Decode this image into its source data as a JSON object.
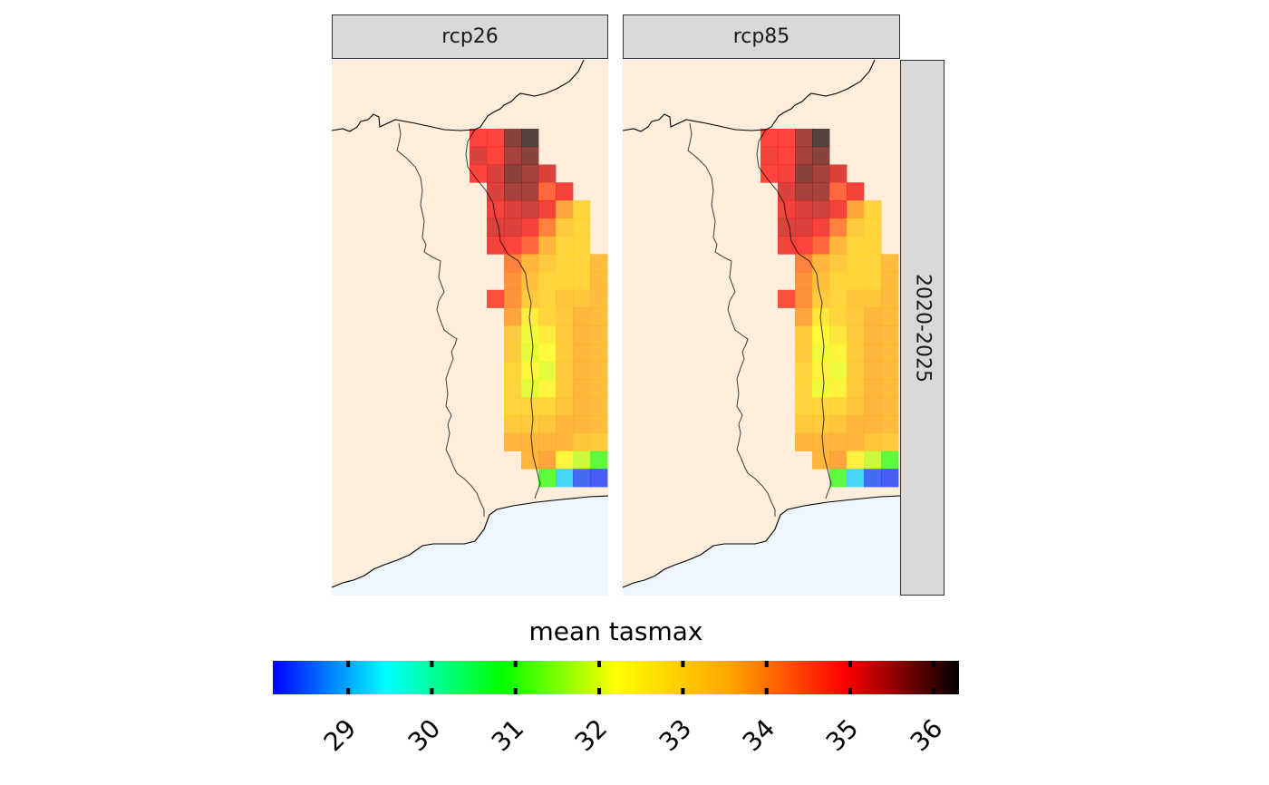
{
  "facets": {
    "columns": [
      "rcp26",
      "rcp85"
    ],
    "row_label": "2020-2025"
  },
  "legend": {
    "title": "mean tasmax",
    "min": 28.1,
    "max": 36.3,
    "ticks": [
      "29",
      "30",
      "31",
      "32",
      "33",
      "34",
      "35",
      "36"
    ],
    "tick_values": [
      29,
      30,
      31,
      32,
      33,
      34,
      35,
      36
    ],
    "colors": [
      "#0000ff",
      "#00ffff",
      "#00ff00",
      "#ffff00",
      "#ffa500",
      "#ff0000",
      "#000000"
    ]
  },
  "colors": {
    "land": "#ffeedb",
    "sea": "#eef6ff",
    "strip_fill": "#d9d9d9",
    "border": "#000000"
  },
  "chart_data": {
    "type": "heatmap",
    "title": "",
    "value_label": "mean tasmax",
    "panels": [
      {
        "name": "rcp26",
        "row": "2020-2025",
        "grid": [
          [
            null,
            null,
            null,
            null,
            34.9,
            34.9,
            35.8,
            36.2,
            null,
            null,
            null,
            null
          ],
          [
            null,
            null,
            null,
            null,
            35.2,
            34.9,
            35.6,
            35.8,
            null,
            null,
            null,
            null
          ],
          [
            null,
            null,
            null,
            null,
            34.9,
            35.2,
            35.8,
            35.6,
            35.2,
            null,
            null,
            null
          ],
          [
            null,
            null,
            null,
            null,
            null,
            35.2,
            35.6,
            35.6,
            34.5,
            35.0,
            null,
            null
          ],
          [
            null,
            null,
            null,
            null,
            null,
            35.0,
            35.2,
            35.3,
            35.0,
            33.8,
            33.0,
            null
          ],
          [
            null,
            null,
            null,
            null,
            null,
            35.2,
            35.2,
            35.0,
            34.2,
            33.2,
            33.0,
            null
          ],
          [
            null,
            null,
            null,
            null,
            null,
            35.0,
            34.9,
            34.5,
            33.6,
            33.0,
            33.0,
            null
          ],
          [
            null,
            null,
            null,
            null,
            null,
            null,
            34.2,
            33.6,
            33.2,
            33.0,
            33.0,
            33.5
          ],
          [
            null,
            null,
            null,
            null,
            null,
            null,
            34.0,
            33.4,
            33.0,
            33.0,
            33.0,
            33.5
          ],
          [
            null,
            null,
            null,
            null,
            null,
            34.8,
            34.0,
            33.2,
            33.0,
            33.3,
            33.3,
            33.5
          ],
          [
            null,
            null,
            null,
            null,
            null,
            null,
            33.8,
            32.5,
            33.0,
            33.2,
            33.6,
            33.5
          ],
          [
            null,
            null,
            null,
            null,
            null,
            null,
            33.2,
            32.1,
            32.5,
            33.2,
            33.6,
            33.5
          ],
          [
            null,
            null,
            null,
            null,
            null,
            null,
            33.2,
            32.0,
            32.2,
            33.2,
            33.6,
            33.5
          ],
          [
            null,
            null,
            null,
            null,
            null,
            null,
            33.0,
            32.3,
            32.0,
            33.2,
            33.6,
            33.5
          ],
          [
            null,
            null,
            null,
            null,
            null,
            null,
            33.0,
            32.0,
            32.3,
            33.2,
            33.6,
            33.5
          ],
          [
            null,
            null,
            null,
            null,
            null,
            null,
            33.0,
            33.0,
            33.0,
            33.3,
            33.6,
            33.5
          ],
          [
            null,
            null,
            null,
            null,
            null,
            null,
            33.2,
            33.2,
            33.3,
            33.6,
            33.6,
            33.5
          ],
          [
            null,
            null,
            null,
            null,
            null,
            null,
            33.6,
            33.6,
            33.6,
            33.6,
            33.3,
            33.2
          ],
          [
            null,
            null,
            null,
            null,
            null,
            null,
            null,
            33.6,
            33.8,
            32.3,
            31.8,
            31.0
          ],
          [
            null,
            null,
            null,
            null,
            null,
            null,
            null,
            null,
            31.0,
            29.2,
            28.4,
            28.3
          ]
        ]
      },
      {
        "name": "rcp85",
        "row": "2020-2025",
        "grid": [
          [
            null,
            null,
            null,
            null,
            34.9,
            34.9,
            35.6,
            36.2,
            null,
            null,
            null,
            null
          ],
          [
            null,
            null,
            null,
            null,
            35.0,
            34.9,
            35.6,
            35.8,
            null,
            null,
            null,
            null
          ],
          [
            null,
            null,
            null,
            null,
            34.9,
            35.0,
            35.8,
            35.6,
            35.2,
            null,
            null,
            null
          ],
          [
            null,
            null,
            null,
            null,
            null,
            35.2,
            35.6,
            35.6,
            34.5,
            35.0,
            null,
            null
          ],
          [
            null,
            null,
            null,
            null,
            null,
            35.0,
            35.2,
            35.3,
            35.0,
            33.8,
            33.0,
            null
          ],
          [
            null,
            null,
            null,
            null,
            null,
            35.2,
            35.2,
            35.0,
            34.2,
            33.2,
            33.0,
            null
          ],
          [
            null,
            null,
            null,
            null,
            null,
            35.0,
            34.9,
            34.5,
            33.6,
            33.0,
            33.0,
            null
          ],
          [
            null,
            null,
            null,
            null,
            null,
            null,
            34.2,
            33.6,
            33.2,
            33.0,
            33.0,
            33.5
          ],
          [
            null,
            null,
            null,
            null,
            null,
            null,
            34.0,
            33.4,
            33.0,
            33.0,
            33.0,
            33.5
          ],
          [
            null,
            null,
            null,
            null,
            null,
            34.8,
            34.0,
            33.2,
            33.0,
            33.3,
            33.3,
            33.5
          ],
          [
            null,
            null,
            null,
            null,
            null,
            null,
            33.8,
            32.6,
            33.0,
            33.2,
            33.6,
            33.5
          ],
          [
            null,
            null,
            null,
            null,
            null,
            null,
            33.2,
            32.2,
            32.6,
            33.2,
            33.6,
            33.5
          ],
          [
            null,
            null,
            null,
            null,
            null,
            null,
            33.2,
            32.1,
            32.3,
            33.2,
            33.6,
            33.5
          ],
          [
            null,
            null,
            null,
            null,
            null,
            null,
            33.0,
            32.4,
            32.1,
            33.2,
            33.6,
            33.5
          ],
          [
            null,
            null,
            null,
            null,
            null,
            null,
            33.0,
            32.1,
            32.4,
            33.2,
            33.6,
            33.5
          ],
          [
            null,
            null,
            null,
            null,
            null,
            null,
            33.0,
            33.0,
            33.0,
            33.3,
            33.6,
            33.5
          ],
          [
            null,
            null,
            null,
            null,
            null,
            null,
            33.2,
            33.2,
            33.3,
            33.6,
            33.6,
            33.5
          ],
          [
            null,
            null,
            null,
            null,
            null,
            null,
            33.6,
            33.6,
            33.6,
            33.6,
            33.3,
            33.2
          ],
          [
            null,
            null,
            null,
            null,
            null,
            null,
            null,
            33.6,
            33.8,
            32.4,
            31.8,
            31.0
          ],
          [
            null,
            null,
            null,
            null,
            null,
            null,
            null,
            null,
            31.0,
            29.2,
            28.4,
            28.3
          ]
        ]
      }
    ]
  }
}
